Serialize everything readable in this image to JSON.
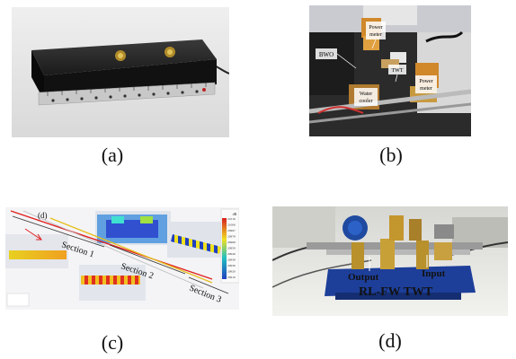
{
  "captions": {
    "a": "(a)",
    "b": "(b)",
    "c": "(c)",
    "d": "(d)"
  },
  "panel_b": {
    "labels": {
      "bwo": "BWO",
      "power_meter_top": "Power meter",
      "twt": "TWT",
      "power_meter_right": "Power meter",
      "water_cooler": "Water cooler"
    }
  },
  "panel_c": {
    "corner_label": "(d)",
    "sections": [
      "Section 1",
      "Section 2",
      "Section 3"
    ],
    "scale_values": [
      "21016",
      "21006",
      "20997",
      "20978",
      "20968",
      "20959",
      "20949",
      "20939",
      "20930",
      "20920",
      "20910"
    ],
    "scale_unit": "dB",
    "colors": {
      "scale_top": "#d62020",
      "scale_mid": "#f0e020",
      "scale_low": "#20c0c0",
      "scale_bottom": "#2040c0"
    }
  },
  "panel_d": {
    "labels": {
      "output": "Output",
      "input": "Input",
      "device": "RL-FW TWT"
    }
  }
}
